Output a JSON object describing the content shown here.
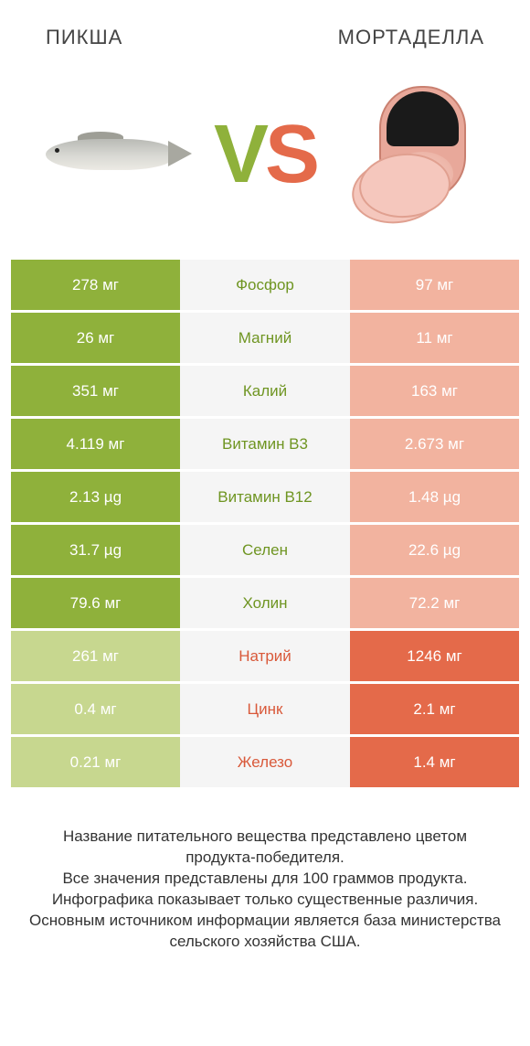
{
  "header": {
    "left_title": "ПИКША",
    "right_title": "МОРТАДЕЛЛА",
    "vs_v": "V",
    "vs_s": "S"
  },
  "colors": {
    "green_win": "#8fb13b",
    "green_lose": "#c7d78f",
    "orange_win": "#e46a4a",
    "orange_lose": "#f2b39f",
    "mid_bg": "#f5f5f5",
    "mid_green_text": "#6f9522",
    "mid_orange_text": "#d9593a"
  },
  "rows": [
    {
      "left": "278 мг",
      "label": "Фосфор",
      "right": "97 мг",
      "winner": "left"
    },
    {
      "left": "26 мг",
      "label": "Магний",
      "right": "11 мг",
      "winner": "left"
    },
    {
      "left": "351 мг",
      "label": "Калий",
      "right": "163 мг",
      "winner": "left"
    },
    {
      "left": "4.119 мг",
      "label": "Витамин B3",
      "right": "2.673 мг",
      "winner": "left"
    },
    {
      "left": "2.13 µg",
      "label": "Витамин B12",
      "right": "1.48 µg",
      "winner": "left"
    },
    {
      "left": "31.7 µg",
      "label": "Селен",
      "right": "22.6 µg",
      "winner": "left"
    },
    {
      "left": "79.6 мг",
      "label": "Холин",
      "right": "72.2 мг",
      "winner": "left"
    },
    {
      "left": "261 мг",
      "label": "Натрий",
      "right": "1246 мг",
      "winner": "right"
    },
    {
      "left": "0.4 мг",
      "label": "Цинк",
      "right": "2.1 мг",
      "winner": "right"
    },
    {
      "left": "0.21 мг",
      "label": "Железо",
      "right": "1.4 мг",
      "winner": "right"
    }
  ],
  "footer": {
    "line1": "Название питательного вещества представлено цветом продукта-победителя.",
    "line2": "Все значения представлены для 100 граммов продукта.",
    "line3": "Инфографика показывает только существенные различия.",
    "line4": "Основным источником информации является база министерства сельского хозяйства США."
  }
}
